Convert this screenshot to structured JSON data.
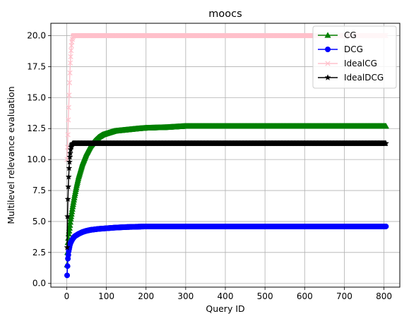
{
  "chart_data": {
    "type": "line",
    "title": "moocs",
    "xlabel": "Query ID",
    "ylabel": "Multilevel relevance evaluation",
    "xlim": [
      -40,
      840
    ],
    "ylim": [
      -0.3,
      21.0
    ],
    "xticks": [
      0,
      100,
      200,
      300,
      400,
      500,
      600,
      700,
      800
    ],
    "xtick_labels": [
      "0",
      "100",
      "200",
      "300",
      "400",
      "500",
      "600",
      "700",
      "800"
    ],
    "yticks": [
      0.0,
      2.5,
      5.0,
      7.5,
      10.0,
      12.5,
      15.0,
      17.5,
      20.0
    ],
    "ytick_labels": [
      "0.0",
      "2.5",
      "5.0",
      "7.5",
      "10.0",
      "12.5",
      "15.0",
      "17.5",
      "20.0"
    ],
    "grid": true,
    "legend_position": "top-right",
    "series": [
      {
        "name": "CG",
        "color": "#008000",
        "marker": "triangle",
        "x": [
          1,
          2,
          3,
          5,
          8,
          10,
          15,
          20,
          25,
          30,
          40,
          50,
          60,
          70,
          80,
          90,
          100,
          120,
          150,
          180,
          200,
          250,
          300,
          400,
          500,
          600,
          700,
          805
        ],
        "y": [
          1.5,
          2.5,
          3.3,
          4.0,
          4.7,
          5.2,
          6.2,
          7.1,
          7.9,
          8.6,
          9.7,
          10.5,
          11.1,
          11.5,
          11.8,
          12.0,
          12.1,
          12.3,
          12.4,
          12.5,
          12.55,
          12.6,
          12.7,
          12.7,
          12.7,
          12.7,
          12.7,
          12.7
        ]
      },
      {
        "name": "DCG",
        "color": "#0000ff",
        "marker": "circle",
        "x": [
          1,
          2,
          3,
          5,
          8,
          10,
          15,
          20,
          30,
          40,
          50,
          60,
          80,
          100,
          120,
          150,
          200,
          300,
          400,
          500,
          600,
          700,
          805
        ],
        "y": [
          0.65,
          1.4,
          2.0,
          2.6,
          3.1,
          3.3,
          3.6,
          3.8,
          4.0,
          4.15,
          4.25,
          4.32,
          4.4,
          4.45,
          4.5,
          4.55,
          4.6,
          4.6,
          4.6,
          4.6,
          4.6,
          4.6,
          4.6
        ]
      },
      {
        "name": "IdealCG",
        "color": "#ffc0cb",
        "marker": "x",
        "x": [
          1,
          2,
          3,
          4,
          5,
          6,
          7,
          8,
          9,
          10,
          11,
          12,
          13,
          14,
          15,
          16,
          18,
          20,
          25,
          30,
          50,
          100,
          200,
          300,
          400,
          500,
          600,
          700,
          805
        ],
        "y": [
          10.0,
          11.0,
          12.0,
          13.2,
          14.2,
          15.2,
          16.2,
          17.0,
          17.8,
          18.3,
          18.8,
          19.2,
          19.5,
          19.7,
          19.85,
          19.95,
          20.0,
          20.0,
          20.0,
          20.0,
          20.0,
          20.0,
          20.0,
          20.0,
          20.0,
          20.0,
          20.0,
          20.0,
          20.0
        ]
      },
      {
        "name": "IdealDCG",
        "color": "#000000",
        "marker": "star",
        "x": [
          1,
          2,
          3,
          4,
          5,
          6,
          7,
          8,
          9,
          10,
          11,
          12,
          13,
          14,
          15,
          17,
          20,
          25,
          30,
          50,
          100,
          200,
          300,
          400,
          500,
          600,
          700,
          805
        ],
        "y": [
          2.9,
          5.4,
          6.8,
          7.8,
          8.6,
          9.3,
          9.8,
          10.2,
          10.5,
          10.8,
          11.0,
          11.1,
          11.2,
          11.25,
          11.3,
          11.3,
          11.3,
          11.3,
          11.3,
          11.3,
          11.3,
          11.3,
          11.3,
          11.3,
          11.3,
          11.3,
          11.3,
          11.3
        ]
      }
    ]
  }
}
